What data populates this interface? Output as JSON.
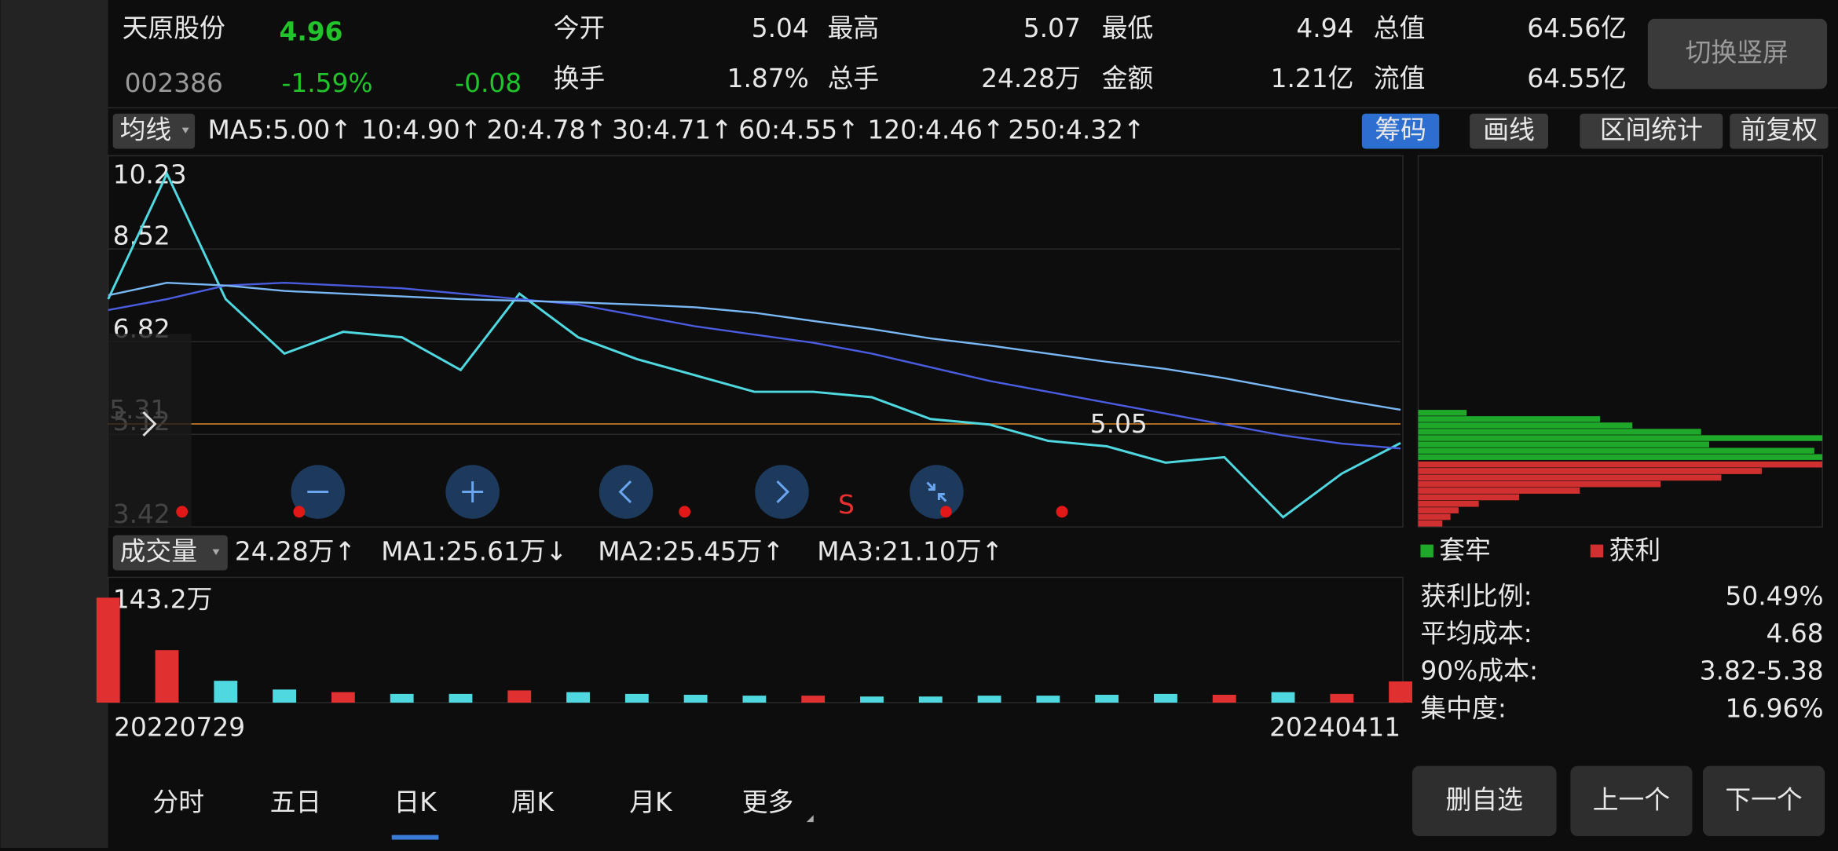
{
  "header": {
    "name": "天原股份",
    "price": "4.96",
    "code": "002386",
    "change_pct": "-1.59%",
    "change": "-0.08",
    "stats": [
      {
        "label": "今开",
        "value": "5.04"
      },
      {
        "label": "最高",
        "value": "5.07"
      },
      {
        "label": "最低",
        "value": "4.94"
      },
      {
        "label": "总值",
        "value": "64.56亿"
      },
      {
        "label": "换手",
        "value": "1.87%"
      },
      {
        "label": "总手",
        "value": "24.28万"
      },
      {
        "label": "金额",
        "value": "1.21亿"
      },
      {
        "label": "流值",
        "value": "64.55亿"
      }
    ],
    "orientation_button": "切换竖屏"
  },
  "ma_bar": {
    "selector": "均线",
    "items": [
      "MA5:5.00↑",
      "10:4.90↑",
      "20:4.78↑",
      "30:4.71↑",
      "60:4.55↑",
      "120:4.46↑",
      "250:4.32↑"
    ],
    "buttons": [
      "筹码",
      "画线",
      "区间统计",
      "前复权"
    ]
  },
  "chart_data": [
    {
      "type": "line",
      "categories": [
        "20220729",
        null,
        null,
        null,
        null,
        null,
        null,
        null,
        null,
        null,
        null,
        null,
        null,
        null,
        null,
        null,
        null,
        null,
        null,
        null,
        null,
        null,
        "20240411"
      ],
      "series": [
        {
          "color": "#4fd8e0",
          "values": [
            7.6,
            9.9,
            7.6,
            6.6,
            7.0,
            6.9,
            6.3,
            7.7,
            6.9,
            6.5,
            6.2,
            5.9,
            5.9,
            5.8,
            5.4,
            5.3,
            5.0,
            4.9,
            4.6,
            4.7,
            3.6,
            4.4,
            4.96
          ]
        },
        {
          "color": "#4a5de0",
          "values": [
            7.4,
            7.6,
            7.85,
            7.9,
            7.85,
            7.8,
            7.7,
            7.6,
            7.5,
            7.3,
            7.1,
            6.95,
            6.8,
            6.6,
            6.35,
            6.1,
            5.9,
            5.7,
            5.5,
            5.3,
            5.1,
            4.95,
            4.86
          ]
        },
        {
          "color": "#7ab8f5",
          "values": [
            7.67,
            7.9,
            7.85,
            7.75,
            7.7,
            7.65,
            7.6,
            7.57,
            7.54,
            7.5,
            7.45,
            7.35,
            7.2,
            7.05,
            6.88,
            6.75,
            6.6,
            6.45,
            6.32,
            6.15,
            5.95,
            5.75,
            5.57
          ]
        }
      ],
      "ylim": [
        3.42,
        10.23
      ],
      "yticks": [
        10.23,
        8.52,
        6.82,
        5.12,
        3.42
      ],
      "grid": true,
      "reference_line": {
        "value": 5.31,
        "label": "5.31"
      },
      "annotation": "5.05"
    },
    {
      "type": "bar",
      "values": [
        120,
        60,
        25,
        15,
        12,
        10,
        10,
        14,
        12,
        10,
        9,
        8,
        8,
        7,
        7,
        8,
        8,
        9,
        10,
        9,
        12,
        10,
        24.28
      ],
      "ylim": [
        0,
        143.2
      ],
      "yticks": [
        {
          "value": 143.2,
          "label": "143.2万"
        }
      ],
      "up_color": "#e03030",
      "down_color": "#4fd8e0"
    }
  ],
  "volume_bar": {
    "selector": "成交量",
    "items": [
      "24.28万↑",
      "MA1:25.61万↓",
      "MA2:25.45万↑",
      "MA3:21.10万↑"
    ]
  },
  "chips": {
    "legend": [
      "套牢",
      "获利"
    ],
    "xlim": [
      0,
      100
    ],
    "trapped": [
      12,
      45,
      53,
      70,
      100,
      72,
      98,
      100
    ],
    "profit": [
      100,
      85,
      75,
      60,
      40,
      25,
      15,
      10,
      8,
      6
    ],
    "stats": [
      {
        "label": "获利比例:",
        "value": "50.49%"
      },
      {
        "label": "平均成本:",
        "value": "4.68"
      },
      {
        "label": "90%成本:",
        "value": "3.82-5.38"
      },
      {
        "label": "集中度:",
        "value": "16.96%"
      }
    ]
  },
  "tabs": [
    "分时",
    "五日",
    "日K",
    "周K",
    "月K",
    "更多"
  ],
  "buttons": [
    "删自选",
    "上一个",
    "下一个"
  ]
}
